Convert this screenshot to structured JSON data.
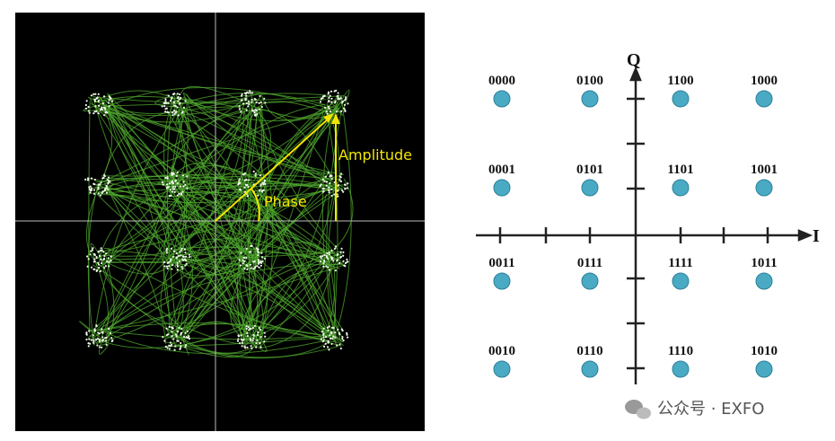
{
  "left_panel": {
    "amplitude_label": "Amplitude",
    "phase_label": "Phase"
  },
  "constellation": {
    "q_axis_label": "Q",
    "i_axis_label": "I",
    "labels": [
      [
        "0000",
        "0100",
        "1100",
        "1000"
      ],
      [
        "0001",
        "0101",
        "1101",
        "1001"
      ],
      [
        "0011",
        "0111",
        "1111",
        "1011"
      ],
      [
        "0010",
        "0110",
        "1110",
        "1010"
      ]
    ]
  },
  "watermark": "公众号 · EXFO"
}
